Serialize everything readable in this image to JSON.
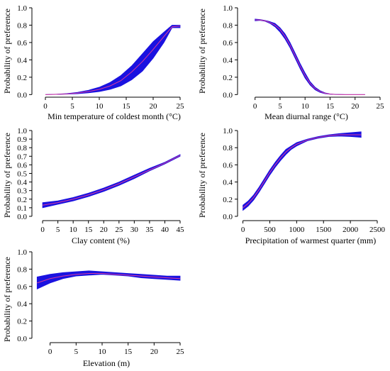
{
  "colors": {
    "band": "#1a12e0",
    "center": "#d93aa0",
    "axis": "#000000"
  },
  "chart_data": [
    {
      "type": "line",
      "xlabel": "Min temperature of coldest month (°C)",
      "ylabel": "Probability of preference",
      "xlim": [
        -2.5,
        25
      ],
      "ylim": [
        -0.03,
        1.0
      ],
      "xticks": [
        0,
        5,
        10,
        15,
        20,
        25
      ],
      "yticks": [
        0.0,
        0.2,
        0.4,
        0.6,
        0.8,
        1.0
      ],
      "grid": false,
      "x": [
        0,
        2,
        4,
        6,
        8,
        10,
        12,
        14,
        16,
        18,
        20,
        22,
        23.5,
        25
      ],
      "y": [
        0.0,
        0.003,
        0.008,
        0.018,
        0.035,
        0.06,
        0.1,
        0.16,
        0.26,
        0.38,
        0.52,
        0.67,
        0.78,
        0.79
      ],
      "lower": [
        0.0,
        0.002,
        0.005,
        0.01,
        0.02,
        0.035,
        0.06,
        0.1,
        0.17,
        0.27,
        0.42,
        0.6,
        0.77,
        0.77
      ],
      "upper": [
        0.0,
        0.005,
        0.012,
        0.026,
        0.05,
        0.085,
        0.14,
        0.22,
        0.33,
        0.47,
        0.61,
        0.72,
        0.8,
        0.8
      ]
    },
    {
      "type": "line",
      "xlabel": "Mean diurnal range (°C)",
      "ylabel": "Probability of preference",
      "xlim": [
        -3.5,
        25
      ],
      "ylim": [
        -0.03,
        1.0
      ],
      "xticks": [
        0,
        5,
        10,
        15,
        20,
        25
      ],
      "yticks": [
        0.0,
        0.2,
        0.4,
        0.6,
        0.8,
        1.0
      ],
      "grid": false,
      "x": [
        0,
        1,
        2,
        3,
        4,
        5,
        6,
        7,
        8,
        9,
        10,
        11,
        12,
        13,
        14,
        15,
        16,
        18,
        20,
        22
      ],
      "y": [
        0.86,
        0.86,
        0.85,
        0.83,
        0.8,
        0.75,
        0.67,
        0.57,
        0.45,
        0.33,
        0.22,
        0.13,
        0.07,
        0.035,
        0.015,
        0.006,
        0.002,
        0.0,
        0.0,
        0.0
      ],
      "lower": [
        0.85,
        0.855,
        0.845,
        0.82,
        0.78,
        0.72,
        0.64,
        0.54,
        0.42,
        0.3,
        0.19,
        0.11,
        0.055,
        0.025,
        0.01,
        0.004,
        0.001,
        0.0,
        0.0,
        0.0
      ],
      "upper": [
        0.87,
        0.865,
        0.855,
        0.84,
        0.82,
        0.77,
        0.7,
        0.6,
        0.48,
        0.36,
        0.25,
        0.15,
        0.085,
        0.045,
        0.02,
        0.008,
        0.003,
        0.0,
        0.0,
        0.0
      ]
    },
    {
      "type": "line",
      "xlabel": "Clay content (%)",
      "ylabel": "Probability of preference",
      "xlim": [
        -3.5,
        45
      ],
      "ylim": [
        -0.05,
        1.0
      ],
      "xticks": [
        0,
        5,
        10,
        15,
        20,
        25,
        30,
        35,
        40,
        45
      ],
      "yticks": [
        0.0,
        0.1,
        0.2,
        0.3,
        0.4,
        0.5,
        0.6,
        0.7,
        0.8,
        0.9,
        1.0
      ],
      "grid": false,
      "x": [
        0,
        5,
        10,
        15,
        20,
        25,
        30,
        35,
        40,
        45
      ],
      "y": [
        0.13,
        0.16,
        0.2,
        0.25,
        0.31,
        0.38,
        0.46,
        0.54,
        0.62,
        0.71
      ],
      "lower": [
        0.1,
        0.14,
        0.18,
        0.23,
        0.29,
        0.36,
        0.44,
        0.53,
        0.61,
        0.7
      ],
      "upper": [
        0.16,
        0.18,
        0.22,
        0.27,
        0.33,
        0.4,
        0.48,
        0.56,
        0.63,
        0.72
      ]
    },
    {
      "type": "line",
      "xlabel": "Precipitation of warmest quarter (mm)",
      "ylabel": "Probability of preference",
      "xlim": [
        -100,
        2500
      ],
      "ylim": [
        -0.05,
        1.0
      ],
      "xticks": [
        0,
        500,
        1000,
        1500,
        2000,
        2500
      ],
      "yticks": [
        0.0,
        0.2,
        0.4,
        0.6,
        0.8,
        1.0
      ],
      "grid": false,
      "x": [
        0,
        100,
        200,
        300,
        400,
        500,
        600,
        700,
        800,
        900,
        1000,
        1200,
        1400,
        1600,
        1800,
        2000,
        2200
      ],
      "y": [
        0.1,
        0.15,
        0.22,
        0.31,
        0.41,
        0.51,
        0.6,
        0.68,
        0.75,
        0.8,
        0.84,
        0.89,
        0.92,
        0.94,
        0.95,
        0.95,
        0.95
      ],
      "lower": [
        0.07,
        0.12,
        0.19,
        0.28,
        0.38,
        0.48,
        0.57,
        0.65,
        0.72,
        0.78,
        0.82,
        0.88,
        0.91,
        0.93,
        0.935,
        0.93,
        0.92
      ],
      "upper": [
        0.13,
        0.18,
        0.25,
        0.34,
        0.44,
        0.54,
        0.63,
        0.71,
        0.78,
        0.82,
        0.86,
        0.9,
        0.93,
        0.95,
        0.965,
        0.975,
        0.985
      ]
    },
    {
      "type": "line",
      "xlabel": "Elevation (m)",
      "ylabel": "Probability of preference",
      "xlim": [
        -3.5,
        25
      ],
      "ylim": [
        -0.05,
        1.0
      ],
      "xticks": [
        0,
        5,
        10,
        15,
        20,
        25
      ],
      "yticks": [
        0.0,
        0.2,
        0.4,
        0.6,
        0.8,
        1.0
      ],
      "grid": false,
      "x": [
        -2.5,
        0,
        2.5,
        5,
        7.5,
        10,
        12.5,
        15,
        17.5,
        20,
        22.5,
        25
      ],
      "y": [
        0.64,
        0.69,
        0.72,
        0.74,
        0.75,
        0.75,
        0.74,
        0.73,
        0.72,
        0.71,
        0.7,
        0.69
      ],
      "lower": [
        0.57,
        0.64,
        0.69,
        0.72,
        0.73,
        0.74,
        0.73,
        0.72,
        0.7,
        0.69,
        0.68,
        0.67
      ],
      "upper": [
        0.71,
        0.74,
        0.76,
        0.77,
        0.78,
        0.77,
        0.76,
        0.75,
        0.74,
        0.73,
        0.72,
        0.72
      ]
    }
  ]
}
